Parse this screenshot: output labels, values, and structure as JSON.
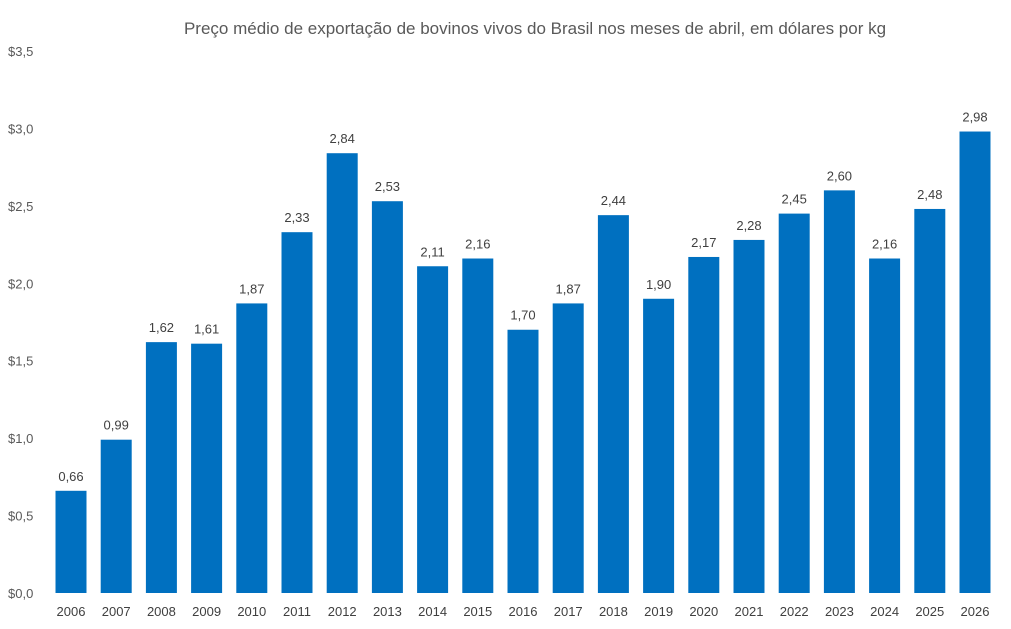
{
  "chart_data": {
    "type": "bar",
    "title": "Preço médio de exportação de bovinos vivos do Brasil nos meses de abril, em dólares por kg",
    "xlabel": "",
    "ylabel": "",
    "ylim": [
      0,
      3.5
    ],
    "ytick_step": 0.5,
    "ytick_labels": [
      "$0,0",
      "$0,5",
      "$1,0",
      "$1,5",
      "$2,0",
      "$2,5",
      "$3,0",
      "$3,5"
    ],
    "grid": false,
    "legend": "none",
    "bar_color": "#0070C0",
    "categories": [
      "2006",
      "2007",
      "2008",
      "2009",
      "2010",
      "2011",
      "2012",
      "2013",
      "2014",
      "2015",
      "2016",
      "2017",
      "2018",
      "2019",
      "2020",
      "2021",
      "2022",
      "2023",
      "2024",
      "2025",
      "2026"
    ],
    "values": [
      0.66,
      0.99,
      1.62,
      1.61,
      1.87,
      2.33,
      2.84,
      2.53,
      2.11,
      2.16,
      1.7,
      1.87,
      2.44,
      1.9,
      2.17,
      2.28,
      2.45,
      2.6,
      2.16,
      2.48,
      2.98
    ],
    "value_labels": [
      "0,66",
      "0,99",
      "1,62",
      "1,61",
      "1,87",
      "2,33",
      "2,84",
      "2,53",
      "2,11",
      "2,16",
      "1,70",
      "1,87",
      "2,44",
      "1,90",
      "2,17",
      "2,28",
      "2,45",
      "2,60",
      "2,16",
      "2,48",
      "2,98"
    ]
  }
}
